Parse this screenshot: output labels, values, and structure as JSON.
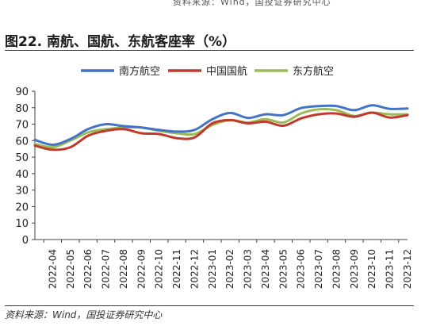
{
  "header_fragment": "资料来源：Wind，国投证券研究中心",
  "title": "图22. 南航、国航、东航客座率（%）",
  "source": "资料来源：Wind，国投证券研究中心",
  "colors": {
    "南方航空": "#4472C4",
    "中国国航": "#C0392B",
    "东方航空": "#9BBB59",
    "rule": "#C00000"
  },
  "chart_data": {
    "type": "line",
    "title": "",
    "xlabel": "",
    "ylabel": "",
    "ylim": [
      0,
      90
    ],
    "yticks": [
      0,
      10,
      20,
      30,
      40,
      50,
      60,
      70,
      80,
      90
    ],
    "grid": false,
    "legend": "top",
    "x_tick_labels": [
      "2022-04",
      "2022-05",
      "2022-06",
      "2022-07",
      "2022-08",
      "2022-09",
      "2022-10",
      "2022-11",
      "2022-12",
      "2023-01",
      "2023-02",
      "2023-03",
      "2023-04",
      "2023-05",
      "2023-06",
      "2023-07",
      "2023-08",
      "2023-09",
      "2023-10",
      "2023-11",
      "2023-12"
    ],
    "x": [
      "2022-03",
      "2022-04",
      "2022-05",
      "2022-06",
      "2022-07",
      "2022-08",
      "2022-09",
      "2022-10",
      "2022-11",
      "2022-12",
      "2023-01",
      "2023-02",
      "2023-03",
      "2023-04",
      "2023-05",
      "2023-06",
      "2023-07",
      "2023-08",
      "2023-09",
      "2023-10",
      "2023-11",
      "2023-12"
    ],
    "series": [
      {
        "name": "南方航空",
        "values": [
          60.5,
          57.5,
          61.0,
          67.0,
          70.0,
          68.8,
          68.0,
          66.5,
          65.5,
          66.5,
          73.0,
          76.8,
          73.8,
          76.0,
          75.5,
          79.8,
          81.0,
          81.0,
          78.5,
          81.5,
          79.3,
          79.5
        ]
      },
      {
        "name": "中国国航",
        "values": [
          57.0,
          54.5,
          56.0,
          63.0,
          66.0,
          67.0,
          64.5,
          64.0,
          61.5,
          62.0,
          70.5,
          72.5,
          70.5,
          71.5,
          69.0,
          73.5,
          76.0,
          76.5,
          74.5,
          77.0,
          74.0,
          75.5
        ]
      },
      {
        "name": "东方航空",
        "values": [
          58.0,
          56.0,
          60.0,
          65.0,
          67.0,
          68.0,
          68.0,
          66.0,
          64.5,
          64.0,
          69.5,
          72.5,
          71.0,
          73.0,
          71.0,
          76.5,
          79.0,
          78.5,
          75.0,
          77.0,
          76.0,
          76.0
        ]
      }
    ]
  }
}
